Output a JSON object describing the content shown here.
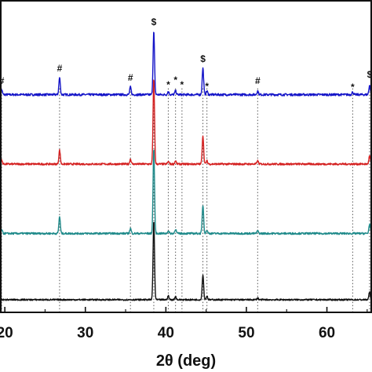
{
  "chart_data": {
    "type": "line",
    "xlabel": "2θ (deg)",
    "ylabel": "",
    "xlim": [
      19.4,
      65.6
    ],
    "ylim": [
      0,
      4.95
    ],
    "x_tick_values": [
      20,
      30,
      40,
      50,
      60
    ],
    "x_tick_labels": [
      "20",
      "30",
      "40",
      "50",
      "60"
    ],
    "grid": false,
    "legend": "none",
    "reference_lines_x": [
      19.6,
      26.8,
      35.6,
      38.5,
      40.3,
      41.2,
      42.0,
      44.6,
      45.1,
      51.4,
      63.2,
      65.3
    ],
    "series": [
      {
        "color": "#1515c8",
        "offset": 3.45,
        "noise": 0.018,
        "peaks": [
          [
            19.6,
            0.08
          ],
          [
            26.8,
            0.27
          ],
          [
            35.6,
            0.12
          ],
          [
            38.5,
            1.0
          ],
          [
            40.3,
            0.05
          ],
          [
            41.2,
            0.06
          ],
          [
            44.6,
            0.42
          ],
          [
            45.1,
            0.06
          ],
          [
            51.4,
            0.06
          ],
          [
            63.2,
            0.04
          ],
          [
            65.3,
            0.15
          ]
        ]
      },
      {
        "color": "#d42020",
        "offset": 2.35,
        "noise": 0.015,
        "peaks": [
          [
            19.6,
            0.06
          ],
          [
            26.8,
            0.22
          ],
          [
            35.6,
            0.08
          ],
          [
            38.5,
            1.35
          ],
          [
            40.3,
            0.04
          ],
          [
            41.2,
            0.05
          ],
          [
            44.6,
            0.45
          ],
          [
            45.1,
            0.05
          ],
          [
            51.4,
            0.05
          ],
          [
            65.3,
            0.13
          ]
        ]
      },
      {
        "color": "#1f8a8a",
        "offset": 1.25,
        "noise": 0.015,
        "peaks": [
          [
            19.6,
            0.06
          ],
          [
            26.8,
            0.27
          ],
          [
            35.6,
            0.08
          ],
          [
            38.5,
            1.35
          ],
          [
            40.3,
            0.04
          ],
          [
            41.2,
            0.07
          ],
          [
            44.6,
            0.45
          ],
          [
            45.1,
            0.05
          ],
          [
            51.4,
            0.04
          ],
          [
            65.3,
            0.15
          ]
        ]
      },
      {
        "color": "#111111",
        "offset": 0.2,
        "noise": 0.012,
        "peaks": [
          [
            38.5,
            1.25
          ],
          [
            40.3,
            0.06
          ],
          [
            41.2,
            0.05
          ],
          [
            44.6,
            0.4
          ],
          [
            45.1,
            0.06
          ],
          [
            51.4,
            0.03
          ],
          [
            65.3,
            0.12
          ]
        ]
      }
    ],
    "annotations": [
      {
        "text": "#",
        "x": 19.6,
        "y": 3.62
      },
      {
        "text": "#",
        "x": 26.8,
        "y": 3.82
      },
      {
        "text": "#",
        "x": 35.6,
        "y": 3.67
      },
      {
        "text": "$",
        "x": 38.5,
        "y": 4.55
      },
      {
        "text": "*",
        "x": 40.3,
        "y": 3.56
      },
      {
        "text": "*",
        "x": 41.2,
        "y": 3.63
      },
      {
        "text": "*",
        "x": 42.0,
        "y": 3.56
      },
      {
        "text": "$",
        "x": 44.6,
        "y": 3.97
      },
      {
        "text": "*",
        "x": 45.1,
        "y": 3.53
      },
      {
        "text": "#",
        "x": 51.4,
        "y": 3.62
      },
      {
        "text": "*",
        "x": 63.2,
        "y": 3.52
      },
      {
        "text": "$",
        "x": 65.3,
        "y": 3.72
      }
    ]
  }
}
